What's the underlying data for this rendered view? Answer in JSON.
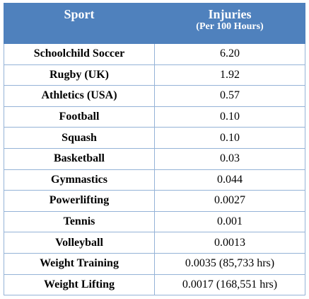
{
  "header": {
    "sport": "Sport",
    "injuries": "Injuries",
    "injuries_sub": "(Per 100 Hours)"
  },
  "rows": [
    {
      "sport": "Schoolchild Soccer",
      "injuries": "6.20"
    },
    {
      "sport": "Rugby (UK)",
      "injuries": "1.92"
    },
    {
      "sport": "Athletics (USA)",
      "injuries": "0.57"
    },
    {
      "sport": "Football",
      "injuries": "0.10"
    },
    {
      "sport": "Squash",
      "injuries": "0.10"
    },
    {
      "sport": "Basketball",
      "injuries": "0.03"
    },
    {
      "sport": "Gymnastics",
      "injuries": "0.044"
    },
    {
      "sport": "Powerlifting",
      "injuries": "0.0027"
    },
    {
      "sport": "Tennis",
      "injuries": "0.001"
    },
    {
      "sport": "Volleyball",
      "injuries": "0.0013"
    },
    {
      "sport": "Weight Training",
      "injuries": "0.0035 (85,733 hrs)"
    },
    {
      "sport": "Weight Lifting",
      "injuries": "0.0017 (168,551 hrs)"
    }
  ],
  "colors": {
    "header_bg": "#4f81bd",
    "header_text": "#ffffff",
    "grid_line": "#95b3d7"
  }
}
